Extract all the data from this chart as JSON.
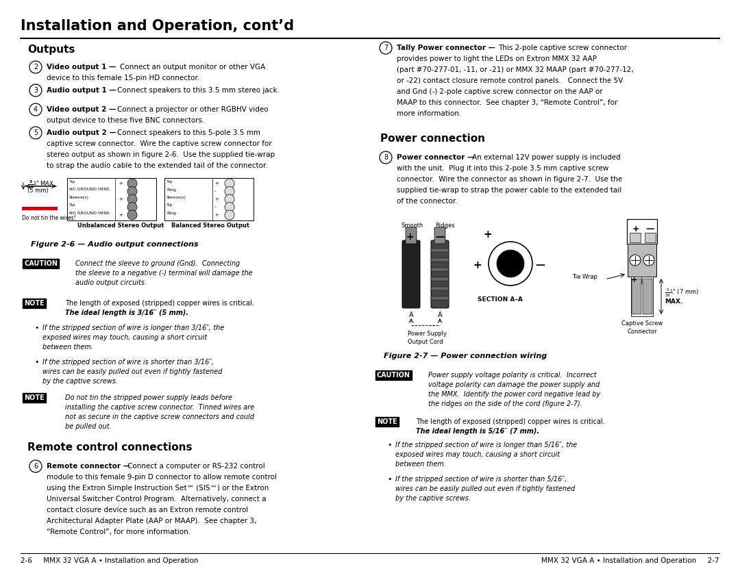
{
  "bg_color": "#ffffff",
  "page_width": 10.8,
  "page_height": 8.34,
  "title": "Installation and Operation, cont’d",
  "footer_left": "2-6     MMX 32 VGA A • Installation and Operation",
  "footer_right": "MMX 32 VGA A • Installation and Operation     2-7"
}
